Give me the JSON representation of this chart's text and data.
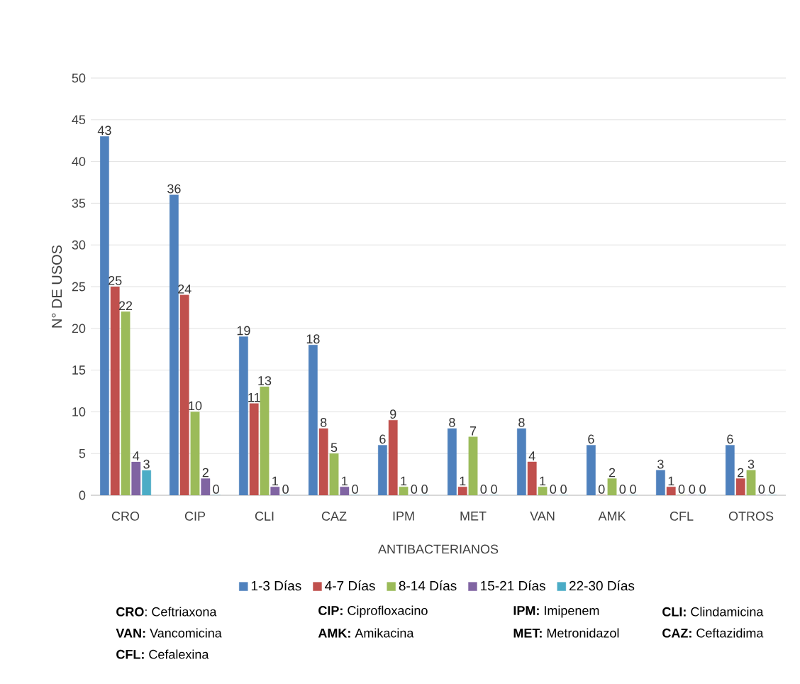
{
  "chart_data": {
    "type": "bar",
    "categories": [
      "CRO",
      "CIP",
      "CLI",
      "CAZ",
      "IPM",
      "MET",
      "VAN",
      "AMK",
      "CFL",
      "OTROS"
    ],
    "series": [
      {
        "name": "1-3 Días",
        "color": "#4f81bd",
        "values": [
          43,
          36,
          19,
          18,
          6,
          8,
          8,
          6,
          3,
          6
        ]
      },
      {
        "name": "4-7 Días",
        "color": "#c0504d",
        "values": [
          25,
          24,
          11,
          8,
          9,
          1,
          4,
          0,
          1,
          2
        ]
      },
      {
        "name": "8-14 Días",
        "color": "#9bbb59",
        "values": [
          22,
          10,
          13,
          5,
          1,
          7,
          1,
          2,
          0,
          3
        ]
      },
      {
        "name": "15-21 Días",
        "color": "#8064a2",
        "values": [
          4,
          2,
          1,
          1,
          0,
          0,
          0,
          0,
          0,
          0
        ]
      },
      {
        "name": "22-30 Días",
        "color": "#4bacc6",
        "values": [
          3,
          0,
          0,
          0,
          0,
          0,
          0,
          0,
          0,
          0
        ]
      }
    ],
    "xlabel": "ANTIBACTERIANOS",
    "ylabel": "N° DE USOS",
    "ylim": [
      0,
      50
    ],
    "yticks": [
      0,
      5,
      10,
      15,
      20,
      25,
      30,
      35,
      40,
      45,
      50
    ],
    "grid": "y",
    "legend": "bottom",
    "data_labels": true,
    "annotations": [
      "**CRO**: Ceftriaxona",
      "**CIP:** Ciprofloxacino",
      "**IPM:** Imipenem",
      "**CLI:** Clindamicina",
      "**VAN:** Vancomicina",
      "**AMK:** Amikacina",
      "**MET:** Metronidazol",
      "**CAZ:** Ceftazidima",
      "**CFL:** Cefalexina"
    ]
  }
}
